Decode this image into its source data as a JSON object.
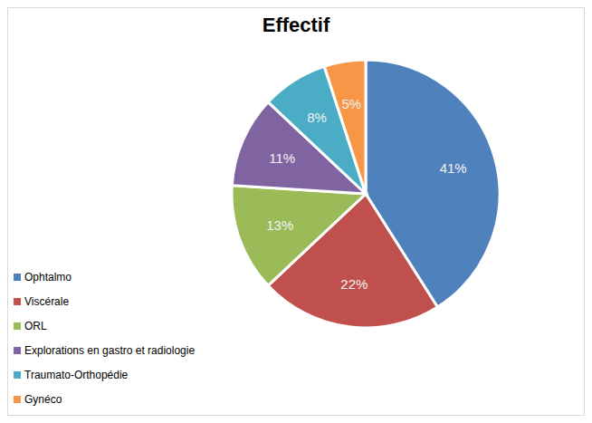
{
  "chart_data": {
    "type": "pie",
    "title": "Effectif",
    "categories": [
      "Ophtalmo",
      "Viscérale",
      "ORL",
      "Explorations en gastro et radiologie",
      "Traumato-Orthopédie",
      "Gynéco"
    ],
    "values": [
      41,
      22,
      13,
      11,
      8,
      5
    ],
    "value_labels": [
      "41%",
      "22%",
      "13%",
      "11%",
      "8%",
      "5%"
    ],
    "colors": [
      "#4f81bd",
      "#c0504d",
      "#9bbb59",
      "#8064a2",
      "#4bacc6",
      "#f79646"
    ],
    "data_labels": true,
    "legend": "bottom-left"
  }
}
